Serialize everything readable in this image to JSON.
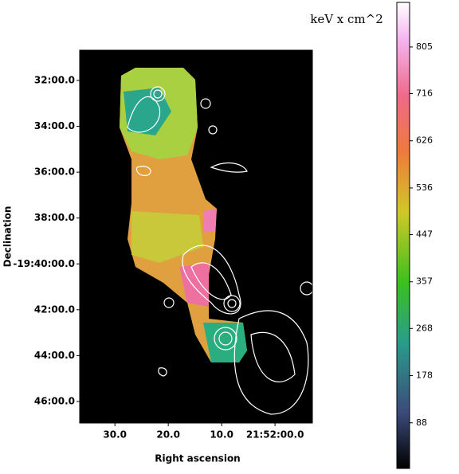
{
  "chart_data": {
    "type": "image",
    "xlabel": "Right ascension",
    "ylabel": "Declination",
    "xlim": [
      36.6,
      -7.0
    ],
    "xticks": [
      {
        "value": 30,
        "label": "30.0"
      },
      {
        "value": 20,
        "label": "20.0"
      },
      {
        "value": 10,
        "label": "10.0"
      },
      {
        "value": 0,
        "label": "21:52:00.0"
      }
    ],
    "ylim": [
      30.68,
      46.94
    ],
    "yticks": [
      {
        "value": 32,
        "label": "32:00.0"
      },
      {
        "value": 34,
        "label": "34:00.0"
      },
      {
        "value": 36,
        "label": "36:00.0"
      },
      {
        "value": 38,
        "label": "38:00.0"
      },
      {
        "value": 40,
        "label": "-19:40:00.0"
      },
      {
        "value": 42,
        "label": "42:00.0"
      },
      {
        "value": 44,
        "label": "44:00.0"
      },
      {
        "value": 46,
        "label": "46:00.0"
      }
    ],
    "colorbar_label": "keV x cm^2",
    "clim": [
      1,
      890
    ],
    "cticks": [
      88,
      178,
      268,
      357,
      447,
      536,
      626,
      716,
      805
    ]
  }
}
